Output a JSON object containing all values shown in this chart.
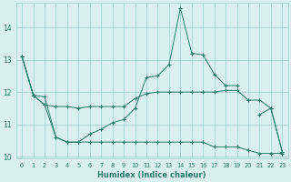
{
  "xlabel": "Humidex (Indice chaleur)",
  "x": [
    0,
    1,
    2,
    3,
    4,
    5,
    6,
    7,
    8,
    9,
    10,
    11,
    12,
    13,
    14,
    15,
    16,
    17,
    18,
    19,
    20,
    21,
    22,
    23
  ],
  "line_top": [
    13.1,
    11.9,
    11.85,
    10.6,
    10.45,
    10.45,
    10.7,
    10.85,
    11.05,
    11.15,
    11.5,
    12.45,
    12.5,
    12.85,
    14.6,
    13.2,
    13.15,
    12.55,
    12.2,
    12.2,
    null,
    11.3,
    11.5,
    10.15
  ],
  "line_mid": [
    13.1,
    11.9,
    11.6,
    11.55,
    11.55,
    11.5,
    11.55,
    11.55,
    11.55,
    11.55,
    11.8,
    11.95,
    12.0,
    12.0,
    12.0,
    12.0,
    12.0,
    12.0,
    12.05,
    12.05,
    11.75,
    11.75,
    11.5,
    10.15
  ],
  "line_bot": [
    13.1,
    11.9,
    11.6,
    10.6,
    10.45,
    10.45,
    10.45,
    10.45,
    10.45,
    10.45,
    10.45,
    10.45,
    10.45,
    10.45,
    10.45,
    10.45,
    10.45,
    10.3,
    10.3,
    10.3,
    10.2,
    10.1,
    10.1,
    10.1
  ],
  "line_color": "#2a7a6a",
  "bg_color": "#d8f0ee",
  "grid_color": "#9ecece",
  "ylim": [
    9.95,
    14.75
  ],
  "yticks": [
    10,
    11,
    12,
    13,
    14
  ],
  "xticks": [
    0,
    1,
    2,
    3,
    4,
    5,
    6,
    7,
    8,
    9,
    10,
    11,
    12,
    13,
    14,
    15,
    16,
    17,
    18,
    19,
    20,
    21,
    22,
    23
  ]
}
